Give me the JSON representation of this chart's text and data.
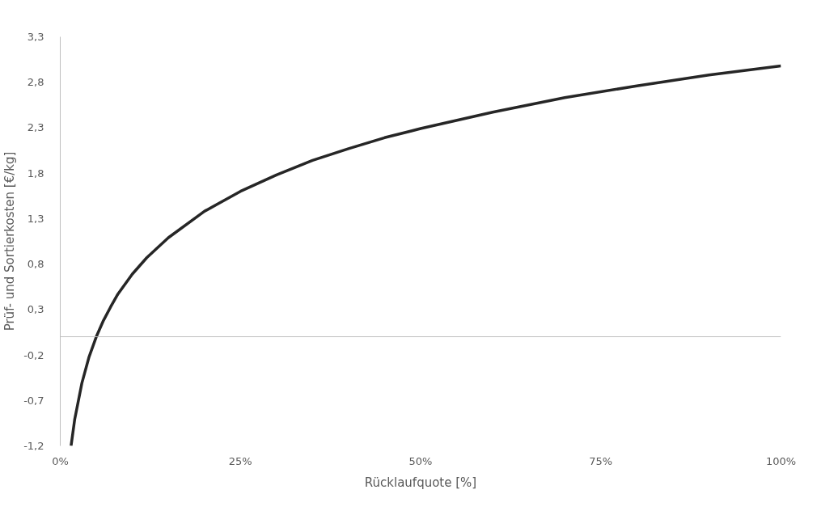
{
  "chart_data": {
    "type": "line",
    "xlabel": "Rücklaufquote [%]",
    "ylabel": "Prüf- und Sortierkosten [€/kg]",
    "x": [
      1.5,
      2,
      3,
      4,
      5,
      6,
      7,
      8,
      10,
      12,
      15,
      20,
      25,
      30,
      35,
      40,
      45,
      50,
      60,
      70,
      80,
      90,
      100
    ],
    "series": [
      {
        "color": "#262626",
        "values": [
          -1.2,
          -0.91,
          -0.51,
          -0.22,
          0.0,
          0.18,
          0.33,
          0.47,
          0.69,
          0.87,
          1.09,
          1.38,
          1.6,
          1.78,
          1.94,
          2.07,
          2.19,
          2.29,
          2.47,
          2.63,
          2.76,
          2.88,
          2.98
        ]
      }
    ],
    "xlim": [
      0,
      100
    ],
    "xticks": [
      {
        "value": 0,
        "label": "0%"
      },
      {
        "value": 25,
        "label": "25%"
      },
      {
        "value": 50,
        "label": "50%"
      },
      {
        "value": 75,
        "label": "75%"
      },
      {
        "value": 100,
        "label": "100%"
      }
    ],
    "ylim": [
      -1.2,
      3.3
    ],
    "yticks": [
      {
        "value": -1.2,
        "label": "-1,2"
      },
      {
        "value": -0.7,
        "label": "-0,7"
      },
      {
        "value": -0.2,
        "label": "-0,2"
      },
      {
        "value": 0.3,
        "label": "0,3"
      },
      {
        "value": 0.8,
        "label": "0,8"
      },
      {
        "value": 1.3,
        "label": "1,3"
      },
      {
        "value": 1.8,
        "label": "1,8"
      },
      {
        "value": 2.3,
        "label": "2,3"
      },
      {
        "value": 2.8,
        "label": "2,8"
      },
      {
        "value": 3.3,
        "label": "3,3"
      }
    ],
    "grid": false,
    "marker": "none",
    "line_style": "solid"
  }
}
